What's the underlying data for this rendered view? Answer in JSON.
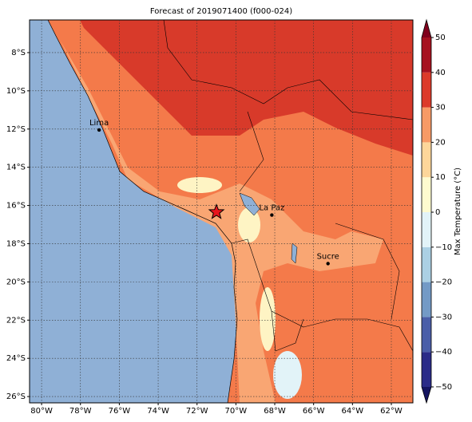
{
  "chart_data": {
    "type": "map",
    "title": "Forecast of 2019071400 (f000-024)",
    "xlim": [
      -80.62,
      -60.89
    ],
    "ylim": [
      -26.33,
      -6.29
    ],
    "xticks": [
      {
        "value": -80,
        "label": "80°W"
      },
      {
        "value": -78,
        "label": "78°W"
      },
      {
        "value": -76,
        "label": "76°W"
      },
      {
        "value": -74,
        "label": "74°W"
      },
      {
        "value": -72,
        "label": "72°W"
      },
      {
        "value": -70,
        "label": "70°W"
      },
      {
        "value": -68,
        "label": "68°W"
      },
      {
        "value": -66,
        "label": "66°W"
      },
      {
        "value": -64,
        "label": "64°W"
      },
      {
        "value": -62,
        "label": "62°W"
      }
    ],
    "yticks": [
      {
        "value": -8,
        "label": "8°S"
      },
      {
        "value": -10,
        "label": "10°S"
      },
      {
        "value": -12,
        "label": "12°S"
      },
      {
        "value": -14,
        "label": "14°S"
      },
      {
        "value": -16,
        "label": "16°S"
      },
      {
        "value": -18,
        "label": "18°S"
      },
      {
        "value": -20,
        "label": "20°S"
      },
      {
        "value": -22,
        "label": "22°S"
      },
      {
        "value": -24,
        "label": "24°S"
      },
      {
        "value": -26,
        "label": "26°S"
      }
    ],
    "grid": true,
    "cities": {
      "names": [
        "Lima",
        "La Paz",
        "Sucre"
      ],
      "lon": [
        -77.04,
        -68.15,
        -65.26
      ],
      "lat": [
        -12.05,
        -16.5,
        -19.04
      ]
    },
    "star": {
      "lon": -71.0,
      "lat": -16.35,
      "color": "#e8141c"
    },
    "colorbar": {
      "label": "Max Temperature (°C)",
      "levels": [
        -50,
        -40,
        -30,
        -20,
        -10,
        0,
        10,
        20,
        30,
        40,
        50
      ],
      "colors": [
        "#2a2b88",
        "#4a5ea8",
        "#739ac6",
        "#abd0e4",
        "#e2f3f8",
        "#fefbcf",
        "#fdd69a",
        "#f79a66",
        "#dc3a2a",
        "#a6111f"
      ],
      "under": "#141460",
      "over": "#80001c",
      "ticks": [
        {
          "value": -50,
          "label": "−50"
        },
        {
          "value": -40,
          "label": "−40"
        },
        {
          "value": -30,
          "label": "−30"
        },
        {
          "value": -20,
          "label": "−20"
        },
        {
          "value": -10,
          "label": "−10"
        },
        0,
        10,
        20,
        30,
        40,
        50
      ]
    }
  }
}
